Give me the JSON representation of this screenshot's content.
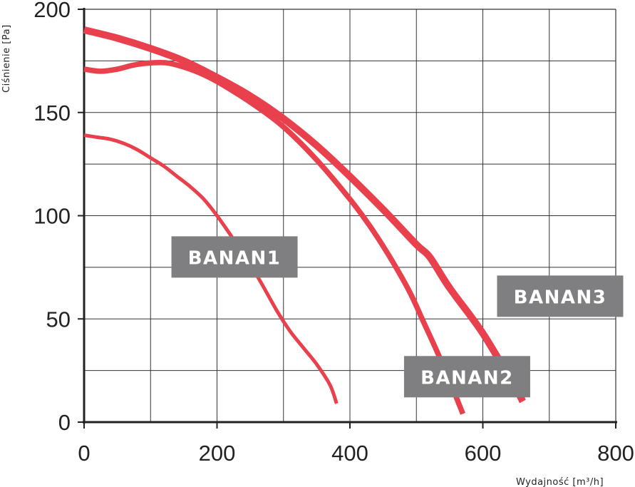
{
  "chart_data": {
    "type": "line",
    "xlabel": "Wydajność [m³/h]",
    "ylabel": "Ciśnienie [Pa]",
    "xlim": [
      0,
      800
    ],
    "ylim": [
      0,
      200
    ],
    "x_ticks": [
      0,
      200,
      400,
      600,
      800
    ],
    "y_ticks": [
      0,
      50,
      100,
      150,
      200
    ],
    "grid": true,
    "colors": {
      "curve": "#e8404d",
      "label_box": "#7f7f81",
      "label_text": "#ffffff",
      "grid": "#333333",
      "axis": "#222222"
    },
    "series": [
      {
        "name": "BANAN1",
        "line_weight": "thin",
        "x": [
          0,
          20,
          40,
          60,
          80,
          100,
          120,
          140,
          160,
          180,
          200,
          230,
          260,
          290,
          310,
          330,
          350,
          370,
          380
        ],
        "y": [
          139,
          138,
          137,
          135,
          132,
          128,
          124,
          119,
          114,
          108,
          100,
          86,
          71,
          54,
          44,
          36,
          28,
          18,
          9
        ]
      },
      {
        "name": "BANAN2",
        "line_weight": "medium",
        "x": [
          0,
          25,
          50,
          75,
          100,
          125,
          150,
          175,
          200,
          250,
          300,
          350,
          400,
          430,
          460,
          490,
          510,
          530,
          550,
          570
        ],
        "y": [
          171,
          170,
          171,
          173,
          174,
          174,
          172,
          169,
          165,
          155,
          143,
          127,
          108,
          95,
          80,
          63,
          49,
          35,
          20,
          4
        ]
      },
      {
        "name": "BANAN3",
        "line_weight": "thick",
        "x": [
          0,
          50,
          100,
          150,
          200,
          250,
          300,
          350,
          400,
          450,
          500,
          520,
          550,
          600,
          650,
          660
        ],
        "y": [
          190,
          186,
          181,
          175,
          167,
          158,
          147,
          134,
          119,
          103,
          86,
          80,
          65,
          43,
          16,
          10
        ]
      }
    ],
    "labels": [
      {
        "text": "BANAN1",
        "anchor_x": 140,
        "anchor_y": 80
      },
      {
        "text": "BANAN2",
        "anchor_x": 490,
        "anchor_y": 22
      },
      {
        "text": "BANAN3",
        "anchor_x": 630,
        "anchor_y": 61
      }
    ]
  }
}
